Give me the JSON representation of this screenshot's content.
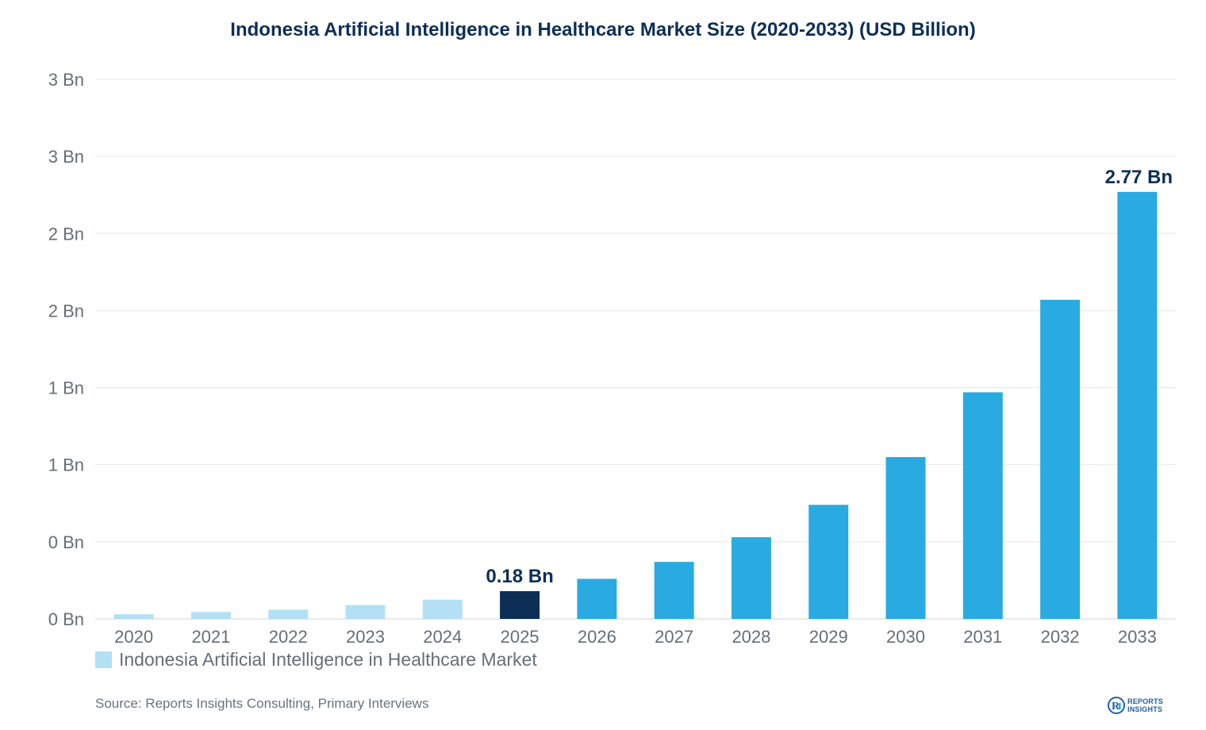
{
  "chart_data": {
    "type": "bar",
    "title": "Indonesia Artificial Intelligence in Healthcare Market Size (2020-2033) (USD Billion)",
    "categories": [
      "2020",
      "2021",
      "2022",
      "2023",
      "2024",
      "2025",
      "2026",
      "2027",
      "2028",
      "2029",
      "2030",
      "2031",
      "2032",
      "2033"
    ],
    "series": [
      {
        "name": "Indonesia Artificial Intelligence in Healthcare Market",
        "values": [
          0.03,
          0.045,
          0.06,
          0.09,
          0.125,
          0.18,
          0.26,
          0.37,
          0.53,
          0.74,
          1.05,
          1.47,
          2.07,
          2.77
        ]
      }
    ],
    "ylim": [
      0,
      3.5
    ],
    "y_ticks": [
      0,
      0.5,
      1,
      1.5,
      2,
      2.5,
      3,
      3.5
    ],
    "y_tick_labels": [
      "0 Bn",
      "0 Bn",
      "1 Bn",
      "1 Bn",
      "2 Bn",
      "2 Bn",
      "3 Bn",
      "3 Bn"
    ],
    "data_labels": [
      {
        "index": 5,
        "text": "0.18 Bn"
      },
      {
        "index": 13,
        "text": "2.77 Bn"
      }
    ],
    "bar_colors": {
      "historical": "#b3e0f5",
      "base_year": "#0d2f55",
      "forecast": "#29abe2"
    },
    "historical_count": 5,
    "base_year_index": 5,
    "grid": true,
    "legend_position": "bottom-left"
  },
  "legend": {
    "label": "Indonesia Artificial Intelligence in Healthcare Market",
    "color": "#b3e0f5"
  },
  "footer": {
    "source": "Source: Reports Insights Consulting, Primary Interviews",
    "logo_line1": "REPORTS",
    "logo_line2": "INSIGHTS",
    "logo_icon": "reports-insights-logo-icon"
  }
}
